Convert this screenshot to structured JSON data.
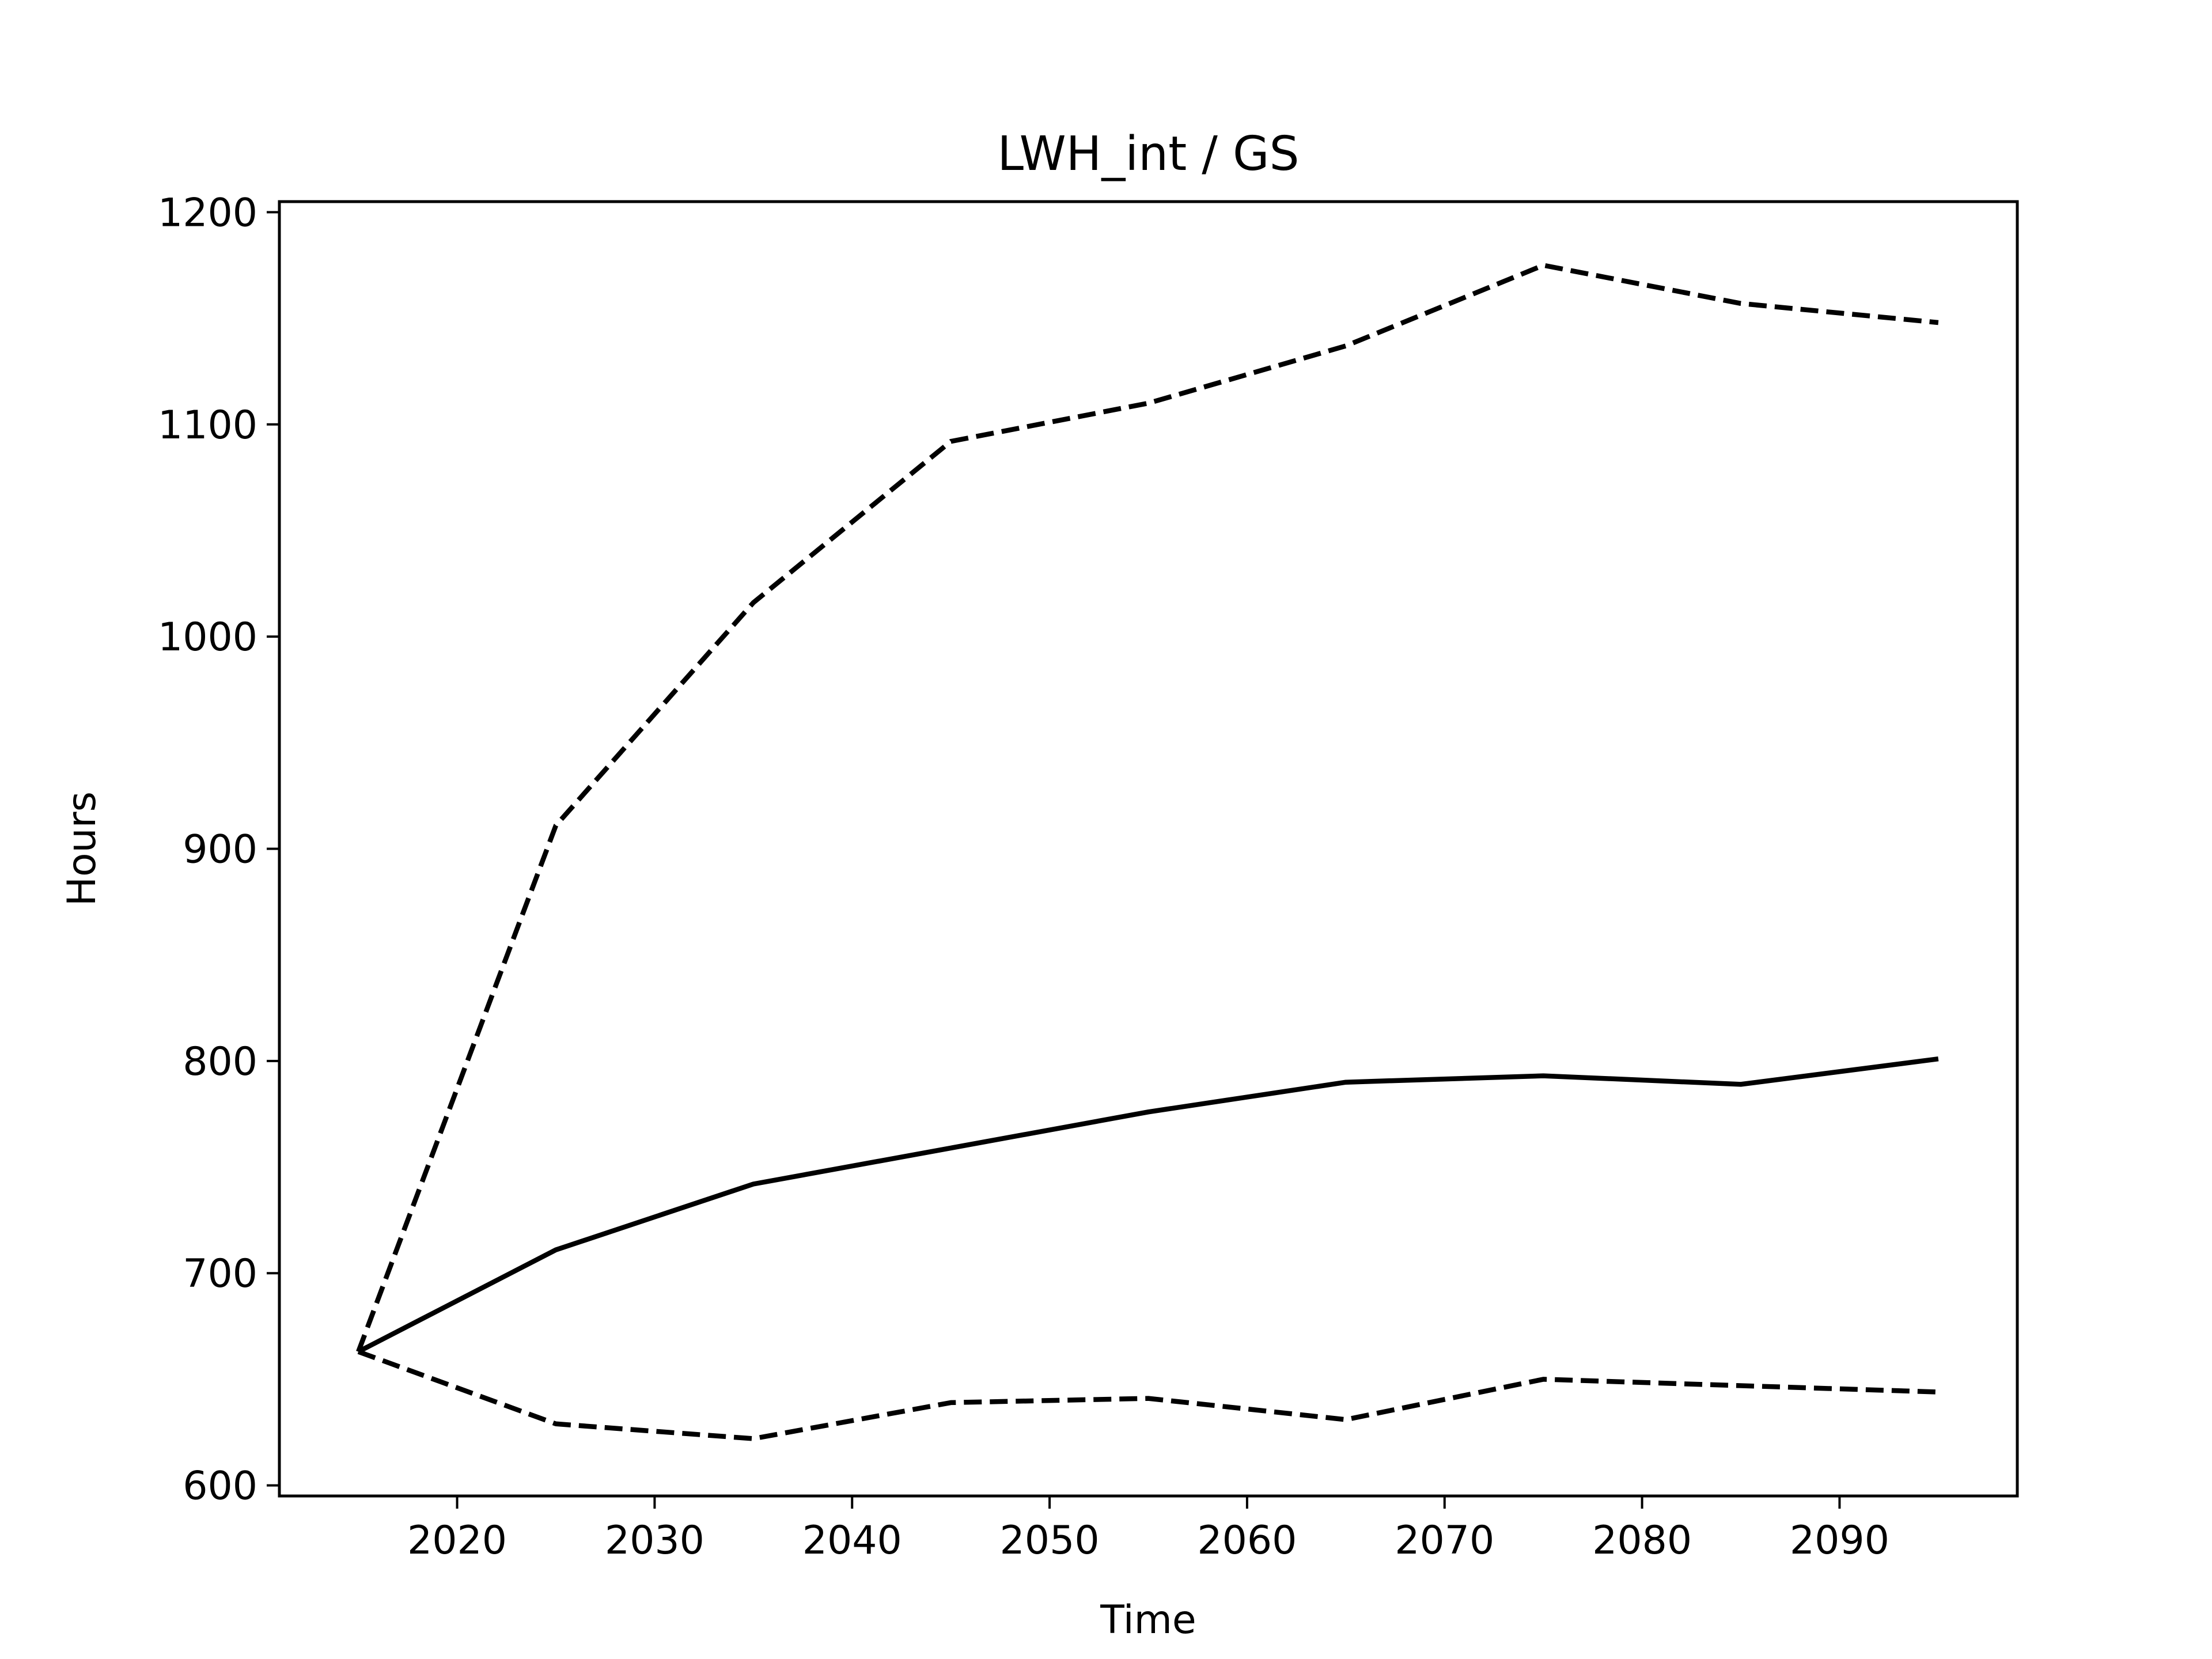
{
  "chart_data": {
    "type": "line",
    "title": "LWH_int / GS",
    "xlabel": "Time",
    "ylabel": "Hours",
    "xlim": [
      2011,
      2099
    ],
    "ylim": [
      595,
      1205
    ],
    "x_ticks": [
      2020,
      2030,
      2040,
      2050,
      2060,
      2070,
      2080,
      2090
    ],
    "y_ticks": [
      600,
      700,
      800,
      900,
      1000,
      1100,
      1200
    ],
    "grid": false,
    "legend": "none",
    "x": [
      2015,
      2025,
      2035,
      2045,
      2055,
      2065,
      2075,
      2085,
      2095
    ],
    "series": [
      {
        "style": "solid",
        "color": "#000000",
        "values": [
          663,
          711,
          742,
          759,
          776,
          790,
          793,
          789,
          801
        ]
      },
      {
        "style": "dashed",
        "color": "#000000",
        "values": [
          663,
          911,
          1016,
          1092,
          1110,
          1137,
          1175,
          1157,
          1148
        ]
      },
      {
        "style": "dashed",
        "color": "#000000",
        "values": [
          663,
          629,
          622,
          639,
          641,
          631,
          650,
          647,
          644
        ]
      }
    ]
  }
}
